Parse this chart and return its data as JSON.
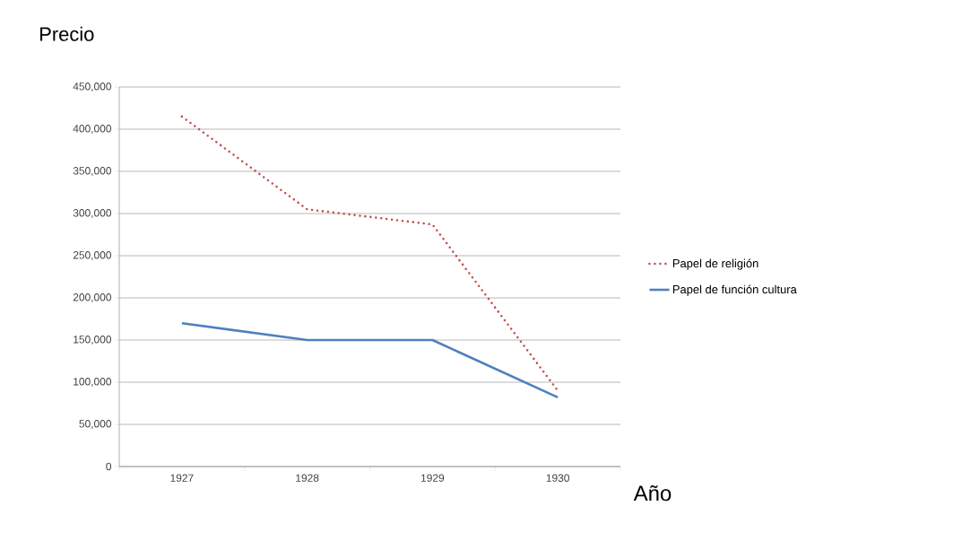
{
  "chart_data": {
    "type": "line",
    "ylabel": "Precio",
    "xlabel": "Año",
    "categories": [
      "1927",
      "1928",
      "1929",
      "1930"
    ],
    "series": [
      {
        "name": "Papel de religión",
        "color": "#c0504d",
        "line_style": "dotted",
        "values": [
          415000,
          305000,
          287000,
          90000
        ]
      },
      {
        "name": "Papel de función cultura",
        "color": "#4f81bd",
        "line_style": "solid",
        "values": [
          170000,
          150000,
          150000,
          82000
        ]
      }
    ],
    "ylim": [
      0,
      450000
    ],
    "yticks": [
      0,
      {
        "value": 50000,
        "label": "50,000"
      },
      {
        "value": 100000,
        "label": "100,000"
      },
      {
        "value": 150000,
        "label": "150,000"
      },
      {
        "value": 200000,
        "label": "200,000"
      },
      {
        "value": 250000,
        "label": "250,000"
      },
      {
        "value": 300000,
        "label": "300,000"
      },
      {
        "value": 350000,
        "label": "350,000"
      },
      {
        "value": 400000,
        "label": "400,000"
      },
      {
        "value": 450000,
        "label": "450,000"
      }
    ],
    "grid": "y",
    "legend": "right",
    "marker": "none"
  }
}
